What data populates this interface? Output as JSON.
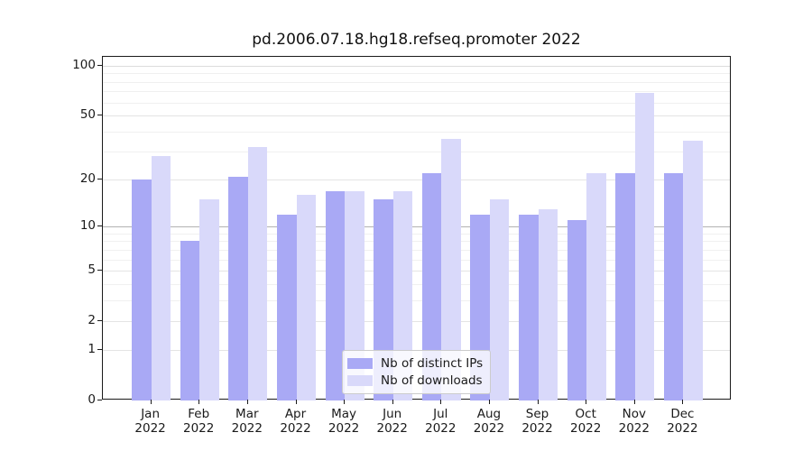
{
  "title": "pd.2006.07.18.hg18.refseq.promoter 2022",
  "chart_data": {
    "type": "bar",
    "title": "pd.2006.07.18.hg18.refseq.promoter 2022",
    "categories": [
      "Jan 2022",
      "Feb 2022",
      "Mar 2022",
      "Apr 2022",
      "May 2022",
      "Jun 2022",
      "Jul 2022",
      "Aug 2022",
      "Sep 2022",
      "Oct 2022",
      "Nov 2022",
      "Dec 2022"
    ],
    "series": [
      {
        "name": "Nb of distinct IPs",
        "color": "#a9a9f5",
        "values": [
          20,
          8,
          21,
          12,
          17,
          15,
          22,
          12,
          12,
          11,
          22,
          22
        ]
      },
      {
        "name": "Nb of downloads",
        "color": "#d9d9fa",
        "values": [
          28,
          15,
          32,
          16,
          17,
          17,
          36,
          15,
          13,
          22,
          69,
          35
        ]
      }
    ],
    "xlabel": "",
    "ylabel": "",
    "yscale": "log10(value+1)",
    "ylim": [
      0,
      113
    ],
    "y_ticks": [
      100,
      50,
      20,
      10,
      5,
      2,
      1,
      0
    ],
    "minor_gridlines": [
      3,
      4,
      6,
      7,
      8,
      9,
      30,
      40,
      60,
      70,
      80,
      90
    ],
    "grid": true,
    "legend_position": "lower center"
  }
}
